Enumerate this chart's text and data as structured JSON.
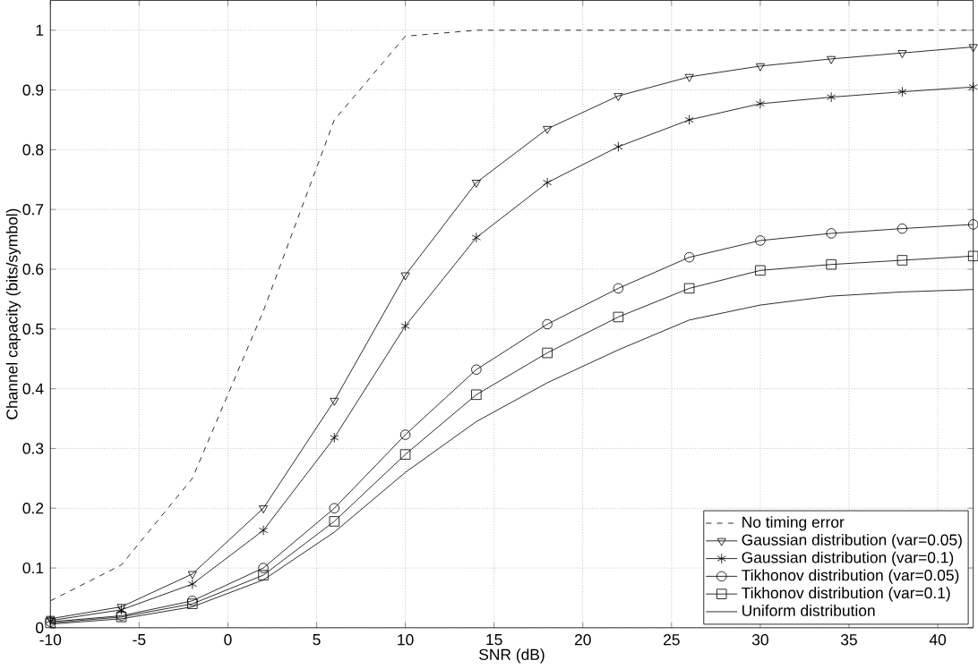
{
  "chart_data": {
    "type": "line",
    "xlabel": "SNR (dB)",
    "ylabel": "Channel capacity (bits/symbol)",
    "x": [
      -10,
      -6,
      -2,
      2,
      6,
      10,
      14,
      18,
      22,
      26,
      30,
      34,
      38,
      42
    ],
    "xlim": [
      -10,
      42
    ],
    "ylim": [
      0,
      1.05
    ],
    "xticks": [
      -10,
      -5,
      0,
      5,
      10,
      15,
      20,
      25,
      30,
      35,
      40
    ],
    "yticks": [
      0,
      0.1,
      0.2,
      0.3,
      0.4,
      0.5,
      0.6,
      0.7,
      0.8,
      0.9,
      1
    ],
    "grid": true,
    "legend": "bottom right",
    "series": [
      {
        "name": "No timing error",
        "color": "#000000",
        "line_style": "dashed",
        "marker": "none",
        "values": [
          0.045,
          0.105,
          0.25,
          0.53,
          0.85,
          0.99,
          1.0,
          1.0,
          1.0,
          1.0,
          1.0,
          1.0,
          1.0,
          1.0
        ]
      },
      {
        "name": "Gaussian distribution (var=0.05)",
        "color": "#000000",
        "line_style": "solid",
        "marker": "triangle",
        "values": [
          0.015,
          0.035,
          0.09,
          0.2,
          0.38,
          0.59,
          0.745,
          0.835,
          0.89,
          0.922,
          0.94,
          0.952,
          0.962,
          0.972
        ]
      },
      {
        "name": "Gaussian distribution (var=0.1)",
        "color": "#000000",
        "line_style": "solid",
        "marker": "cross",
        "values": [
          0.012,
          0.03,
          0.073,
          0.163,
          0.318,
          0.505,
          0.653,
          0.745,
          0.805,
          0.85,
          0.877,
          0.888,
          0.897,
          0.905
        ]
      },
      {
        "name": "Tikhonov distribution (var=0.05)",
        "color": "#000000",
        "line_style": "solid",
        "marker": "circle",
        "values": [
          0.01,
          0.02,
          0.045,
          0.1,
          0.2,
          0.323,
          0.432,
          0.508,
          0.568,
          0.62,
          0.648,
          0.66,
          0.668,
          0.675
        ]
      },
      {
        "name": "Tikhonov distribution (var=0.1)",
        "color": "#000000",
        "line_style": "solid",
        "marker": "square",
        "values": [
          0.008,
          0.018,
          0.04,
          0.088,
          0.178,
          0.29,
          0.39,
          0.46,
          0.52,
          0.568,
          0.598,
          0.608,
          0.615,
          0.622
        ]
      },
      {
        "name": "Uniform distribution",
        "color": "#000000",
        "line_style": "solid",
        "marker": "none",
        "values": [
          0.006,
          0.015,
          0.035,
          0.08,
          0.16,
          0.26,
          0.345,
          0.41,
          0.465,
          0.515,
          0.54,
          0.555,
          0.562,
          0.566
        ]
      }
    ]
  }
}
